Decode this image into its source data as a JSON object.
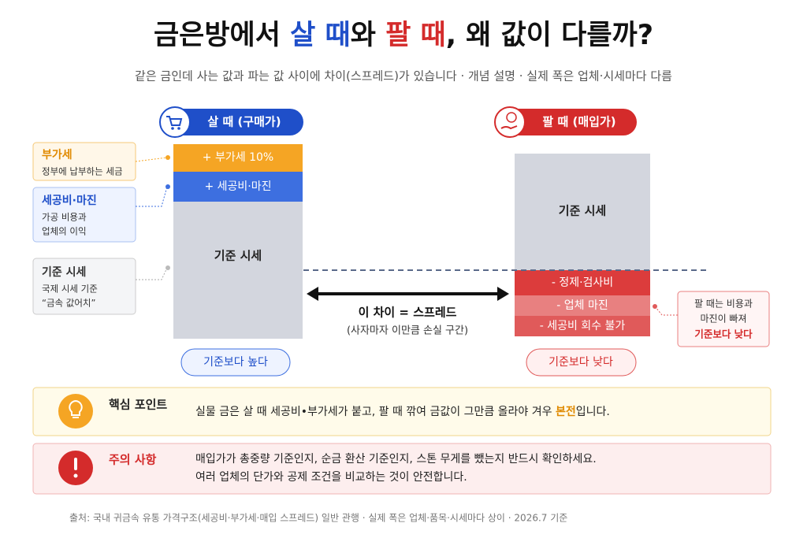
{
  "title": {
    "parts": [
      "금은방에서 ",
      "살 때",
      "와 ",
      "팔 때",
      ", 왜 값이 다를까?"
    ]
  },
  "subtitle": "같은 금인데 사는 값과 파는 값 사이에 차이(스프레드)가 있습니다  ·  개념 설명 · 실제 폭은 업체·시세마다 다름",
  "buy": {
    "label": "살 때 (구매가)",
    "segments": [
      "+ 부가세 10%",
      "+ 세공비·마진",
      "기준 시세"
    ],
    "badge": "기준보다 높다",
    "callouts": [
      {
        "title": "부가세",
        "lines": [
          "정부에 납부하는 세금"
        ]
      },
      {
        "title": "세공비·마진",
        "lines": [
          "가공 비용과",
          "업체의 이익"
        ]
      },
      {
        "title": "기준 시세",
        "lines": [
          "국제 시세 기준",
          "“금속 값어치”"
        ]
      }
    ]
  },
  "sell": {
    "label": "팔 때 (매입가)",
    "segments": [
      "기준 시세",
      "- 정제·검사비",
      "- 업체 마진",
      "- 세공비 회수 불가"
    ],
    "badge": "기준보다 낮다",
    "callout": {
      "lines": [
        "팔 때는 비용과",
        "마진이 빠져"
      ],
      "emphasis": "기준보다 낮다"
    }
  },
  "spread": {
    "label": "이 차이 = 스프레드",
    "note": "(사자마자 이만큼 손실 구간)"
  },
  "key_point": {
    "title": "핵심 포인트",
    "parts": [
      "실물 금은 살 때 세공비•부가세가 붙고, 팔 때 깎여 금값이 그만큼 올라야 겨우 ",
      "본전",
      "입니다."
    ]
  },
  "caution": {
    "title": "주의 사항",
    "lines": [
      "매입가가 총중량 기준인지, 순금 환산 기준인지, 스톤 무게를 뺐는지 반드시 확인하세요.",
      "여러 업체의 단가와 공제 조건을 비교하는 것이 안전합니다."
    ]
  },
  "source": "출처: 국내 귀금속 유통 가격구조(세공비·부가세·매입 스프레드) 일반 관행 · 실제 폭은 업체·품목·시세마다 상이 · 2026.7 기준"
}
